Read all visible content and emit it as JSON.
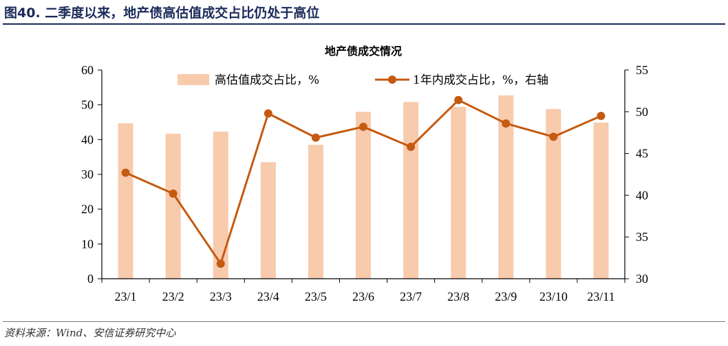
{
  "figure": {
    "title": "图40. 二季度以来，地产债高估值成交占比仍处于高位",
    "source": "资料来源：Wind、安信证券研究中心"
  },
  "colors": {
    "bar": "#f8cbad",
    "line": "#c55a11"
  },
  "chart_data": {
    "type": "bar+line",
    "title": "地产债成交情况",
    "categories": [
      "23/1",
      "23/2",
      "23/3",
      "23/4",
      "23/5",
      "23/6",
      "23/7",
      "23/8",
      "23/9",
      "23/10",
      "23/11"
    ],
    "series": [
      {
        "name": "高估值成交占比，%",
        "type": "bar",
        "axis": "left",
        "values": [
          44.7,
          41.7,
          42.3,
          33.5,
          38.5,
          48.0,
          50.8,
          49.4,
          52.7,
          48.8,
          44.9
        ]
      },
      {
        "name": "1年内成交占比，%，右轴",
        "type": "line",
        "axis": "right",
        "values": [
          42.7,
          40.2,
          31.8,
          49.8,
          46.9,
          48.2,
          45.8,
          51.4,
          48.6,
          47.0,
          49.5
        ]
      }
    ],
    "ylim_left": [
      0,
      60
    ],
    "yticks_left": [
      0,
      10,
      20,
      30,
      40,
      50,
      60
    ],
    "ylim_right": [
      30,
      55
    ],
    "yticks_right": [
      30,
      35,
      40,
      45,
      50,
      55
    ],
    "legend": "top",
    "grid": false
  }
}
